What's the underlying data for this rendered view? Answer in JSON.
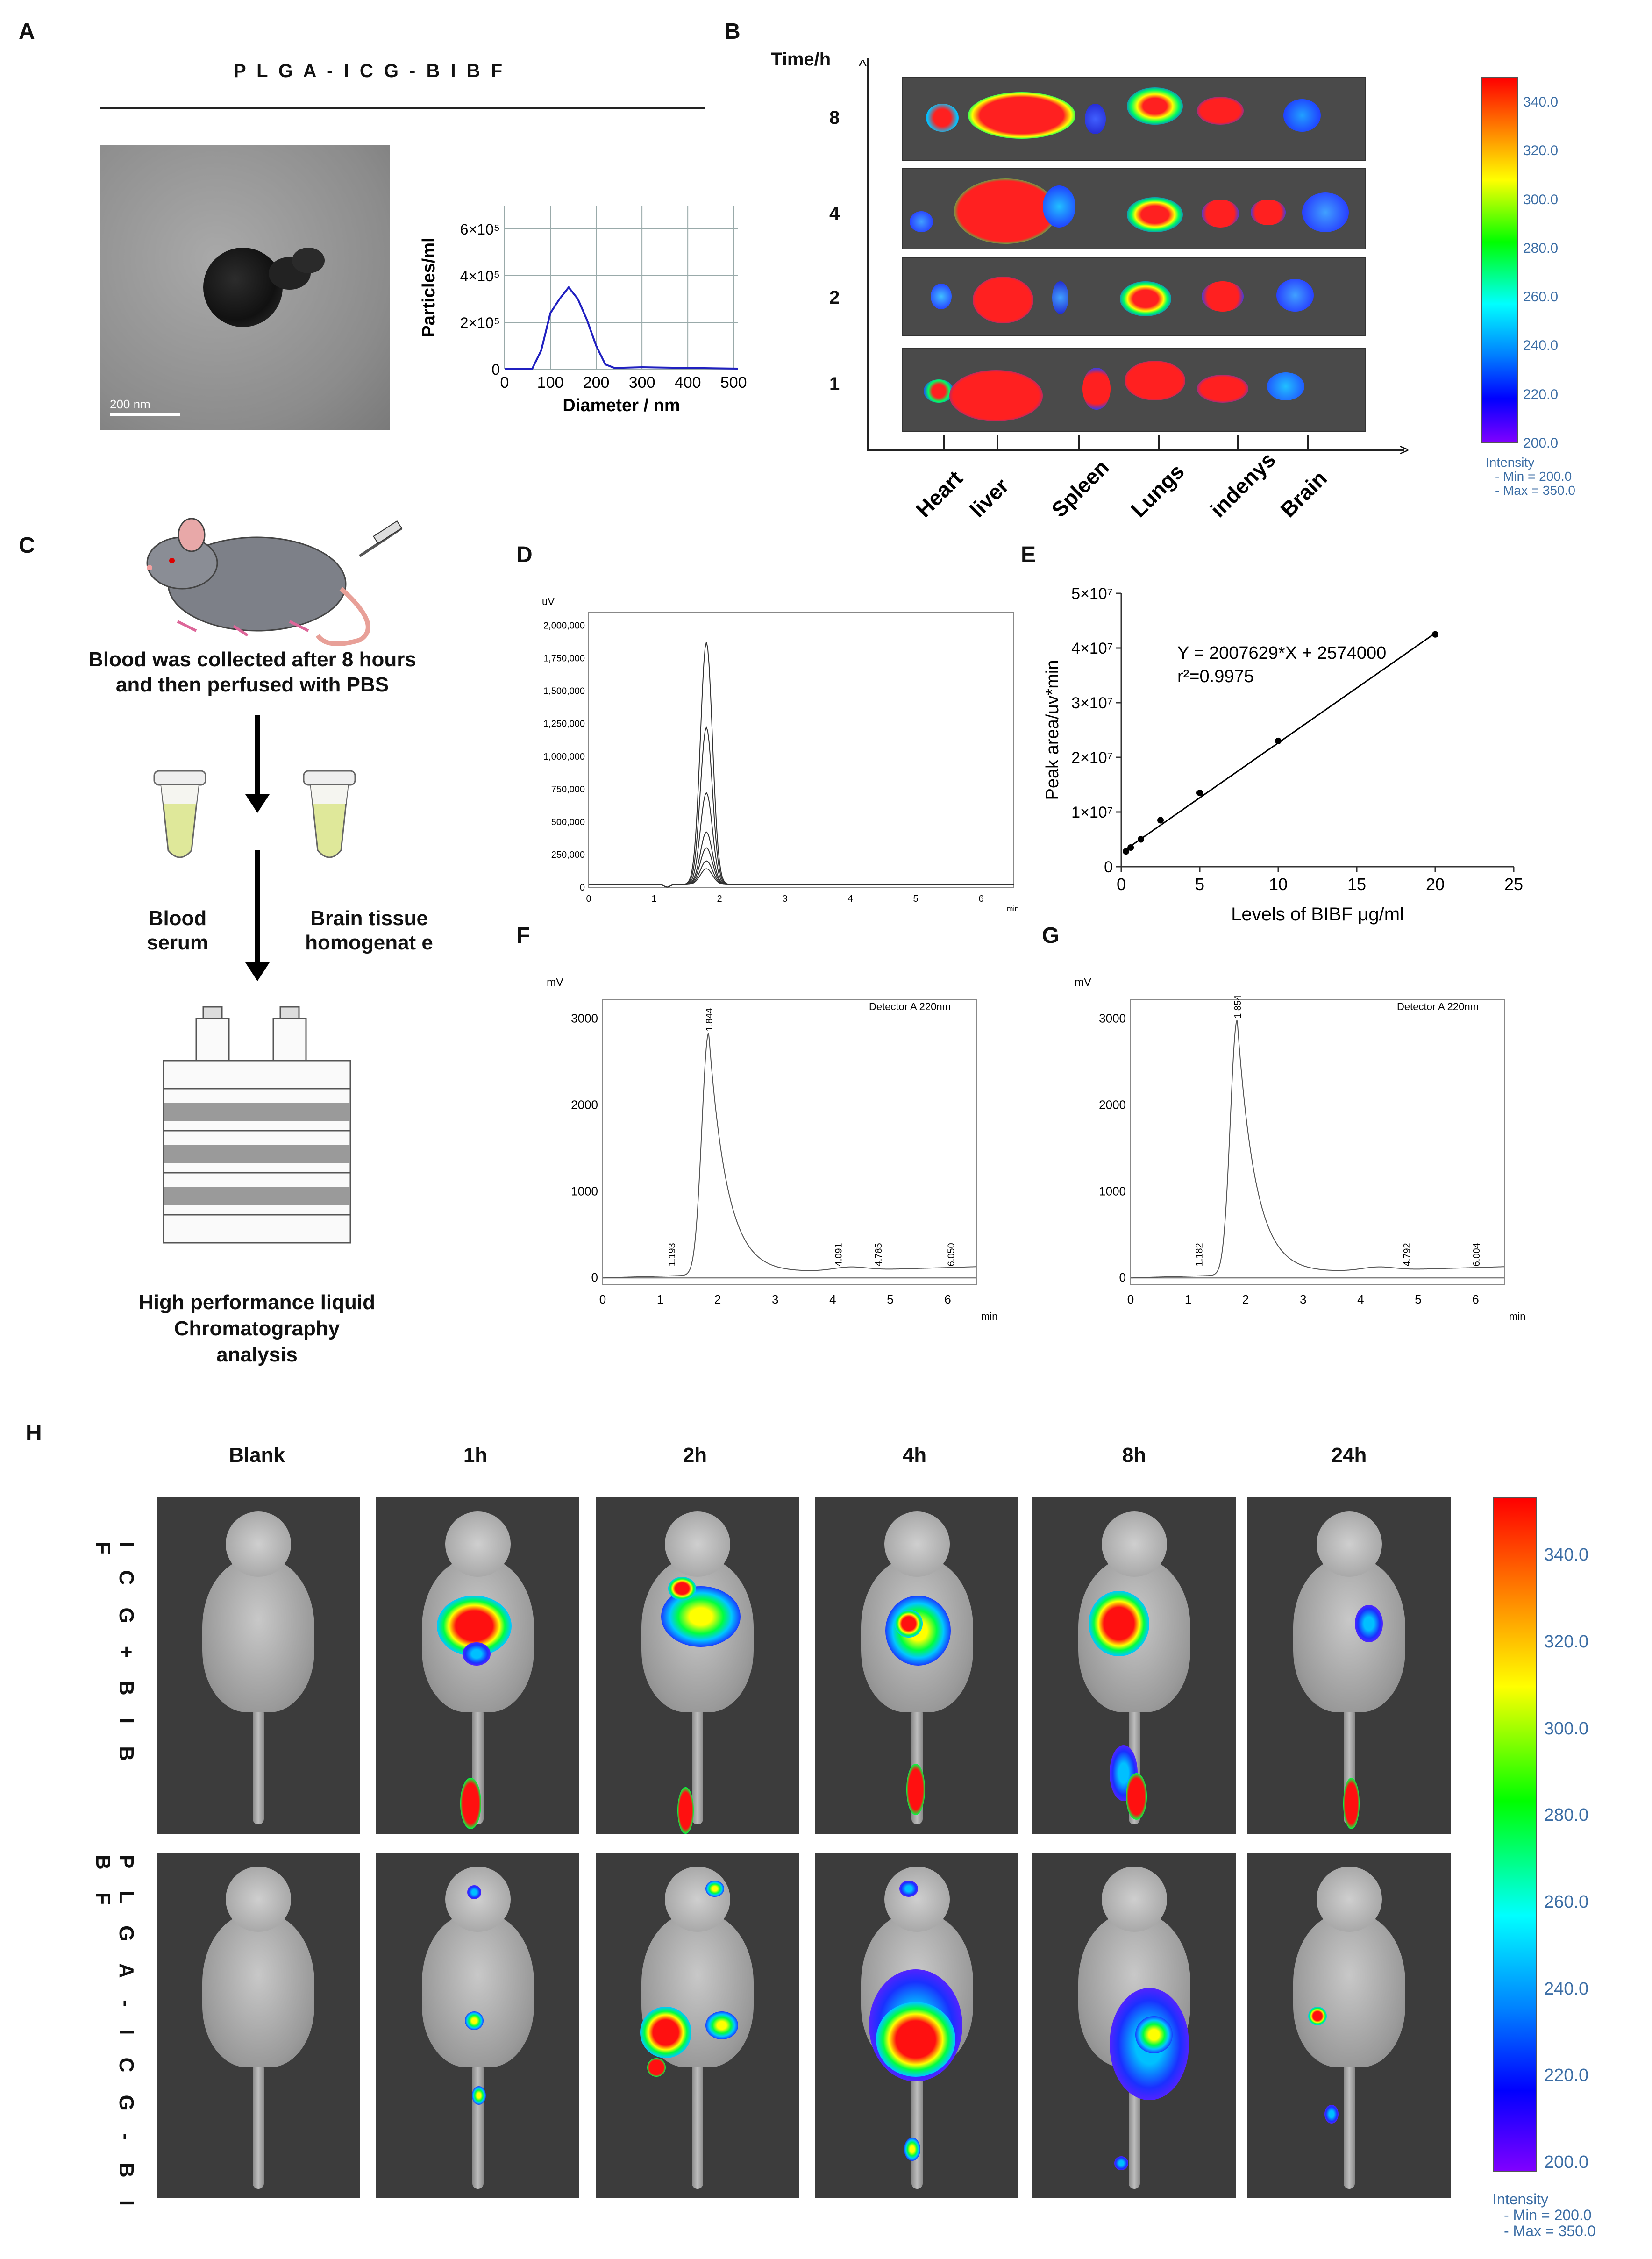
{
  "panel_letters": {
    "a": "A",
    "b": "B",
    "c": "C",
    "d": "D",
    "e": "E",
    "f": "F",
    "g": "G",
    "h": "H"
  },
  "panelA": {
    "title": "P L G A - I C G - B I B F",
    "scale_bar": "200 nm",
    "nta_chart": {
      "type": "line",
      "ylabel": "Particles/ml",
      "xlabel": "Diameter / nm",
      "xticks": [
        "0",
        "100",
        "200",
        "300",
        "400",
        "500"
      ],
      "yticks": [
        "0",
        "2×10⁵",
        "4×10⁵",
        "6×10⁵"
      ],
      "xlim": [
        0,
        510
      ],
      "ylim": [
        0,
        700000
      ],
      "x": [
        0,
        30,
        60,
        80,
        100,
        120,
        140,
        160,
        180,
        200,
        220,
        240,
        300,
        400,
        510
      ],
      "y": [
        0,
        0,
        0,
        80000,
        240000,
        300000,
        350000,
        300000,
        210000,
        100000,
        20000,
        5000,
        8000,
        5000,
        2000
      ]
    }
  },
  "panelB": {
    "axis_title": "Time/h",
    "time_labels": [
      "8",
      "4",
      "2",
      "1"
    ],
    "organs": [
      "Heart",
      "liver",
      "Spleen",
      "Lungs",
      "indenys",
      "Brain"
    ],
    "colorbar": {
      "ticks": [
        "340.0",
        "320.0",
        "300.0",
        "280.0",
        "260.0",
        "240.0",
        "220.0",
        "200.0"
      ],
      "caption_l1": "Intensity",
      "caption_l2": "- Min = 200.0",
      "caption_l3": "- Max = 350.0"
    }
  },
  "panelC": {
    "step1": "Blood was collected after 8 hours",
    "step1b": "and then perfused with PBS",
    "blood": "Blood serum",
    "brain": "Brain tissue homogenat e",
    "hplc_l1": "High performance liquid",
    "hplc_l2": "Chromatography",
    "hplc_l3": "analysis"
  },
  "panelD": {
    "yunit": "uV",
    "yticks": [
      "2,000,000",
      "1,750,000",
      "1,500,000",
      "1,250,000",
      "1,000,000",
      "750,000",
      "500,000",
      "250,000",
      "0"
    ],
    "xticks": [
      "0",
      "1",
      "2",
      "3",
      "4",
      "5",
      "6"
    ],
    "xunit": "min",
    "chart_data": {
      "type": "line",
      "peak_time": 1.8,
      "series_peaks": [
        1850000,
        1200000,
        700000,
        400000,
        280000,
        180000,
        120000
      ],
      "xlim": [
        0,
        6.5
      ],
      "ylim": [
        0,
        2000000
      ]
    }
  },
  "panelE": {
    "equation": "Y = 2007629*X + 2574000",
    "r2": "r²=0.9975",
    "ylabel": "Peak area/uv*min",
    "xlabel": "Levels of BIBF μg/ml",
    "yticks": [
      "0",
      "1×10⁷",
      "2×10⁷",
      "3×10⁷",
      "4×10⁷",
      "5×10⁷"
    ],
    "xticks": [
      "0",
      "5",
      "10",
      "15",
      "20",
      "25"
    ],
    "chart_data": {
      "type": "scatter",
      "x": [
        0.3,
        0.6,
        1.25,
        2.5,
        5,
        10,
        20
      ],
      "y": [
        2800000,
        3500000,
        5000000,
        8500000,
        13500000,
        23000000,
        42500000
      ],
      "xlim": [
        0,
        25
      ],
      "ylim": [
        0,
        50000000
      ]
    }
  },
  "panelF": {
    "yunit": "mV",
    "detector": "Detector A 220nm",
    "yticks": [
      "3000",
      "2000",
      "1000",
      "0"
    ],
    "xticks": [
      "0",
      "1",
      "2",
      "3",
      "4",
      "5",
      "6"
    ],
    "xunit": "min",
    "peaks": [
      "1.193",
      "1.844",
      "4.091",
      "4.785",
      "6.050"
    ]
  },
  "panelG": {
    "yunit": "mV",
    "detector": "Detector A 220nm",
    "yticks": [
      "3000",
      "2000",
      "1000",
      "0"
    ],
    "xticks": [
      "0",
      "1",
      "2",
      "3",
      "4",
      "5",
      "6"
    ],
    "xunit": "min",
    "peaks": [
      "1.182",
      "1.854",
      "4.792",
      "6.004"
    ]
  },
  "panelH": {
    "columns": [
      "Blank",
      "1h",
      "2h",
      "4h",
      "8h",
      "24h"
    ],
    "row1": "I C G + B I B F",
    "row2": "P L G A - I C G - B I B F",
    "colorbar": {
      "ticks": [
        "340.0",
        "320.0",
        "300.0",
        "280.0",
        "260.0",
        "240.0",
        "220.0",
        "200.0"
      ],
      "caption_l1": "Intensity",
      "caption_l2": "- Min = 200.0",
      "caption_l3": "- Max = 350.0"
    }
  }
}
